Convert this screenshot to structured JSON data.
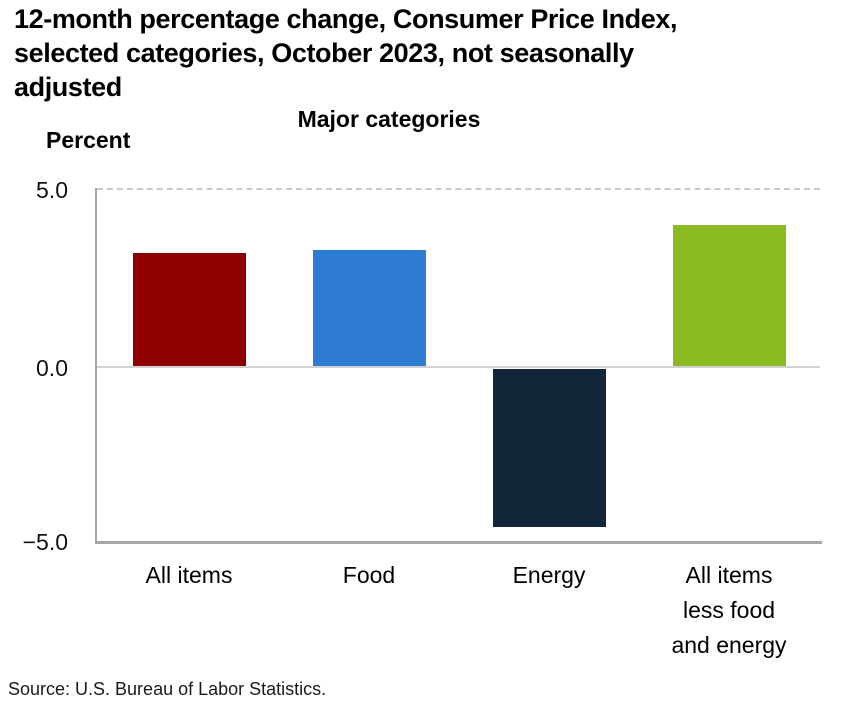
{
  "title": {
    "lines": [
      "12-month percentage change, Consumer Price Index,",
      "selected categories, October 2023, not seasonally",
      "adjusted"
    ],
    "full": "12-month percentage change, Consumer Price Index, selected categories, October 2023, not seasonally adjusted"
  },
  "percent_label": "Percent",
  "subtitle": "Major categories",
  "source": "Source: U.S. Bureau of Labor Statistics.",
  "colors": {
    "axis": "#a6a6a6",
    "zero_line": "#d2d2d2",
    "grid_dashed": "#c9c9c9",
    "text": "#000000"
  },
  "chart_data": {
    "type": "bar",
    "title": "Major categories",
    "xlabel": "",
    "ylabel": "Percent",
    "ylim": [
      -5.0,
      5.0
    ],
    "grid": "dashed line at 5.0 only, solid light line at 0.0",
    "legend": "none",
    "yticks": [
      {
        "value": 5.0,
        "label": "5.0"
      },
      {
        "value": 0.0,
        "label": "0.0"
      },
      {
        "value": -5.0,
        "label": "−5.0"
      }
    ],
    "categories": [
      "All items",
      "Food",
      "Energy",
      "All items less food and energy"
    ],
    "category_label_lines": [
      [
        "All items"
      ],
      [
        "Food"
      ],
      [
        "Energy"
      ],
      [
        "All items",
        "less food",
        "and energy"
      ]
    ],
    "values": [
      3.2,
      3.3,
      -4.5,
      4.0
    ],
    "bar_colors": [
      "#8e0001",
      "#2e7dd2",
      "#112639",
      "#8abb23"
    ],
    "category_slugs": [
      "all-items",
      "food",
      "energy",
      "all-items-less-food-and-energy"
    ]
  }
}
